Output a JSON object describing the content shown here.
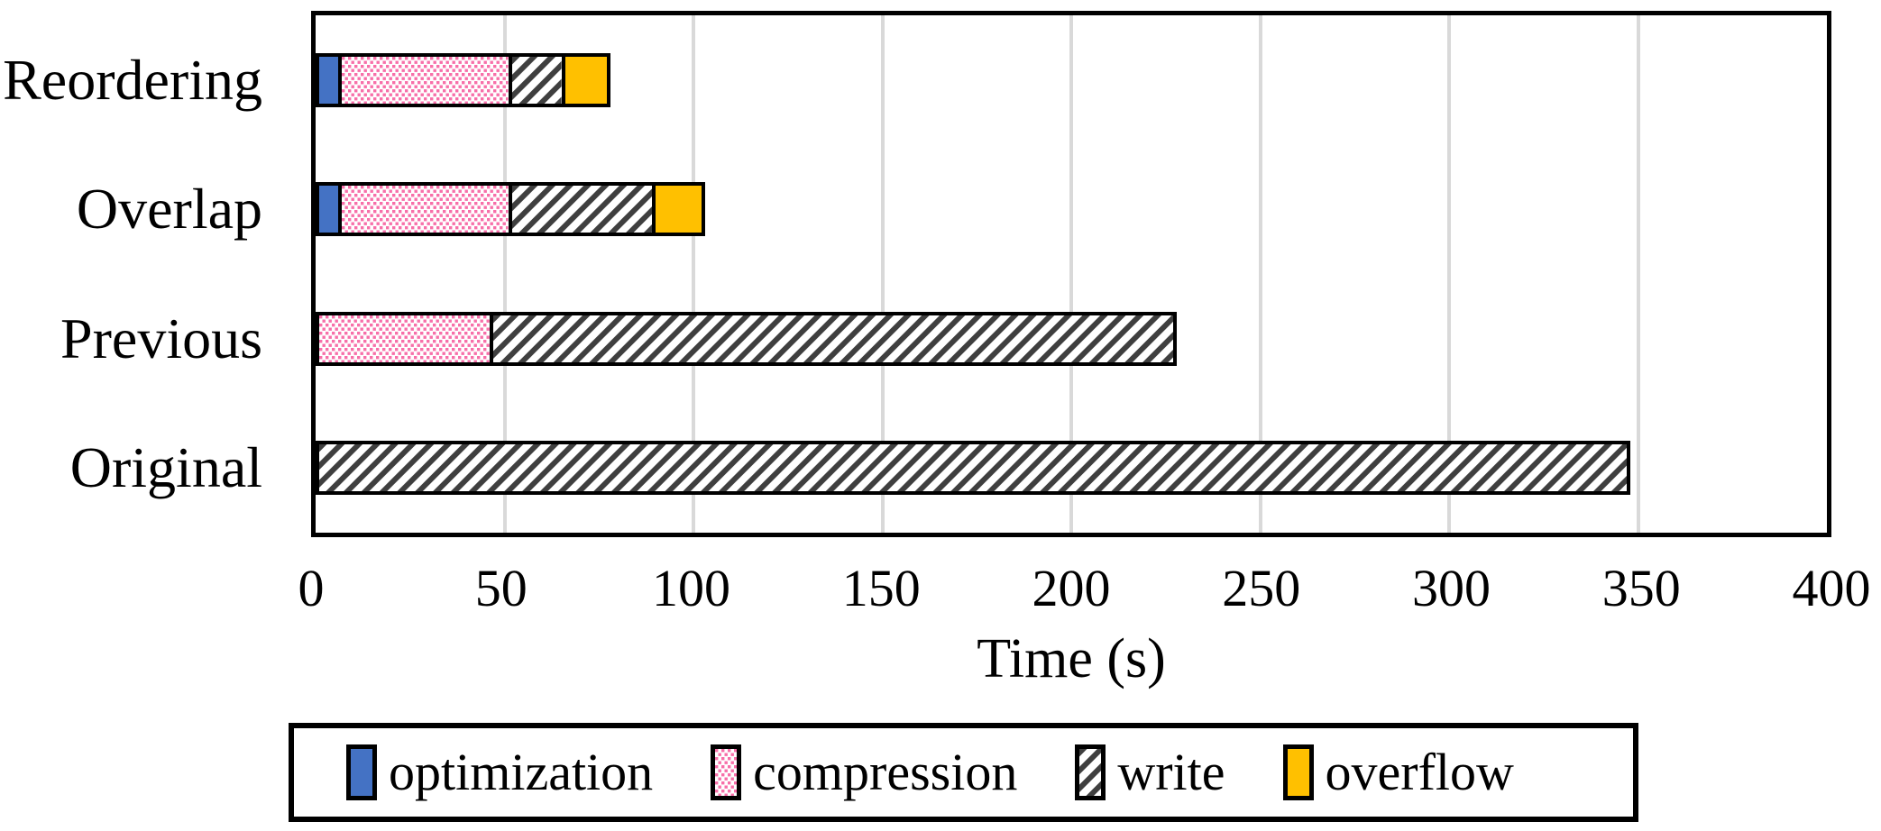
{
  "chart_data": {
    "type": "bar",
    "subtype": "horizontal-stacked",
    "categories": [
      "Reordering",
      "Overlap",
      "Previous",
      "Original"
    ],
    "series": [
      {
        "name": "optimization",
        "fill": "solid",
        "color": "#4472C4",
        "values": [
          7,
          7,
          0,
          0
        ]
      },
      {
        "name": "compression",
        "fill": "dots",
        "color": "#F76FA9",
        "values": [
          45,
          45,
          47,
          0
        ]
      },
      {
        "name": "write",
        "fill": "hatch",
        "color": "#3F3F3F",
        "values": [
          14,
          38,
          181,
          348
        ]
      },
      {
        "name": "overflow",
        "fill": "solid",
        "color": "#FFC000",
        "values": [
          12,
          13,
          0,
          0
        ]
      }
    ],
    "totals": [
      78,
      103,
      228,
      348
    ],
    "title": "",
    "xlabel": "Time (s)",
    "ylabel": "",
    "xlim": [
      0,
      400
    ],
    "x_ticks": [
      0,
      50,
      100,
      150,
      200,
      250,
      300,
      350,
      400
    ],
    "grid": "vertical-major",
    "gridline_color": "#D9D9D9",
    "frame_color": "#000000",
    "bar_border_color": "#000000",
    "legend_position": "bottom"
  }
}
